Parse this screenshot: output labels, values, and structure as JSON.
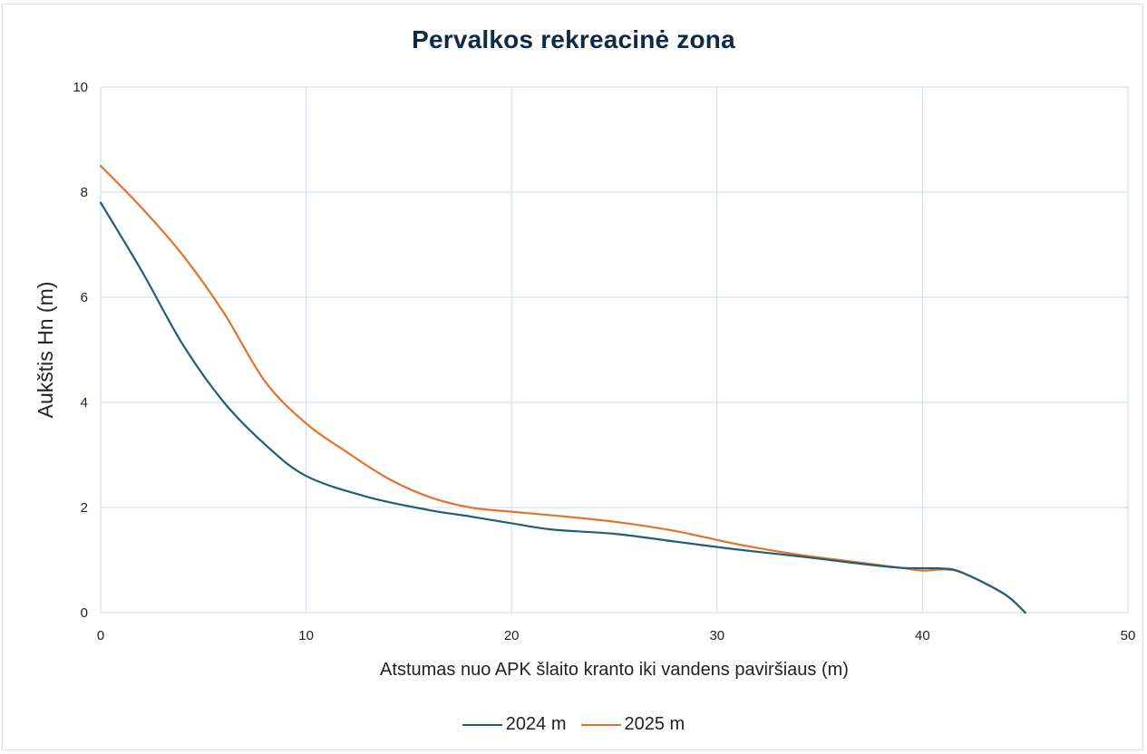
{
  "chart_data": {
    "type": "line",
    "title": "Pervalkos rekreacinė zona",
    "xlabel": "Atstumas nuo APK šlaito kranto iki vandens paviršiaus (m)",
    "ylabel": "Aukštis Hn (m)",
    "xlim": [
      0,
      50
    ],
    "ylim": [
      0,
      10
    ],
    "xticks": [
      0,
      10,
      20,
      30,
      40,
      50
    ],
    "yticks": [
      0,
      2,
      4,
      6,
      8,
      10
    ],
    "grid": true,
    "legend_position": "bottom",
    "series": [
      {
        "name": "2024 m",
        "color": "#1f5f73",
        "points": [
          [
            0,
            7.8
          ],
          [
            2,
            6.5
          ],
          [
            4,
            5.1
          ],
          [
            6,
            4.0
          ],
          [
            8,
            3.2
          ],
          [
            10,
            2.6
          ],
          [
            13,
            2.2
          ],
          [
            16,
            1.95
          ],
          [
            18,
            1.83
          ],
          [
            20,
            1.7
          ],
          [
            22,
            1.58
          ],
          [
            25,
            1.5
          ],
          [
            28,
            1.35
          ],
          [
            31,
            1.2
          ],
          [
            34,
            1.07
          ],
          [
            37,
            0.93
          ],
          [
            39,
            0.85
          ],
          [
            41,
            0.84
          ],
          [
            42,
            0.75
          ],
          [
            44,
            0.35
          ],
          [
            45,
            0.0
          ]
        ]
      },
      {
        "name": "2025 m",
        "color": "#e2722e",
        "points": [
          [
            0,
            8.5
          ],
          [
            2,
            7.7
          ],
          [
            4,
            6.8
          ],
          [
            6,
            5.7
          ],
          [
            8,
            4.4
          ],
          [
            10,
            3.6
          ],
          [
            12,
            3.05
          ],
          [
            14,
            2.55
          ],
          [
            16,
            2.2
          ],
          [
            18,
            2.0
          ],
          [
            20,
            1.92
          ],
          [
            22,
            1.85
          ],
          [
            25,
            1.73
          ],
          [
            28,
            1.55
          ],
          [
            31,
            1.3
          ],
          [
            34,
            1.1
          ],
          [
            37,
            0.95
          ],
          [
            39,
            0.85
          ],
          [
            40,
            0.8
          ],
          [
            41,
            0.82
          ],
          [
            42,
            0.75
          ],
          [
            44,
            0.35
          ],
          [
            45,
            0.0
          ]
        ]
      }
    ]
  }
}
